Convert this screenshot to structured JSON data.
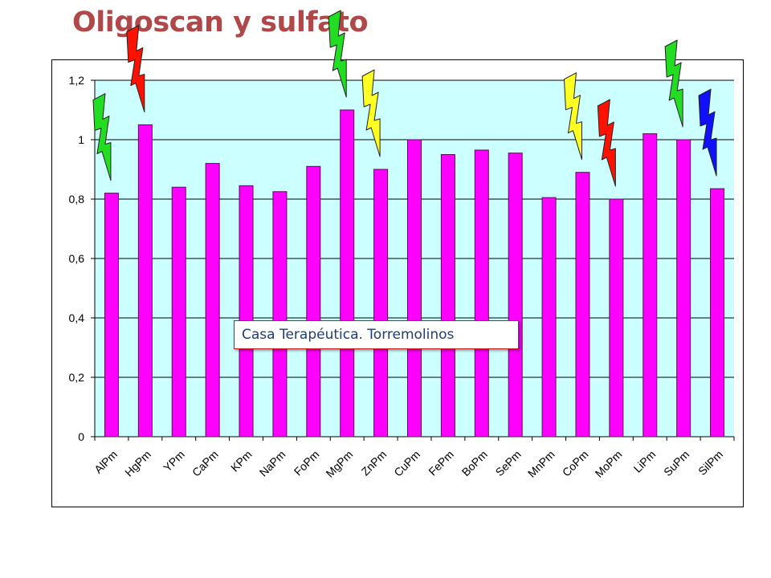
{
  "title": "Oligoscan y sulfato",
  "annotation": "Casa Terapéutica. Torremolinos",
  "colors": {
    "title": "#b0484a",
    "plot_bg": "#ccffff",
    "bar_fill": "#ff00ff",
    "bar_stroke": "#5a0a5a"
  },
  "markers": [
    {
      "category": "AlPm",
      "color": "#22dd22",
      "icon": "lightning-icon"
    },
    {
      "category": "HgPm",
      "color": "#ff1100",
      "icon": "lightning-icon"
    },
    {
      "category": "MgPm",
      "color": "#22dd22",
      "icon": "lightning-icon"
    },
    {
      "category": "ZnPm",
      "color": "#ffff22",
      "icon": "lightning-icon"
    },
    {
      "category": "CoPm",
      "color": "#ffff22",
      "icon": "lightning-icon"
    },
    {
      "category": "MoPm",
      "color": "#ff1100",
      "icon": "lightning-icon"
    },
    {
      "category": "SuPm",
      "color": "#22dd22",
      "icon": "lightning-icon"
    },
    {
      "category": "SilPm",
      "color": "#1010ff",
      "icon": "lightning-icon"
    }
  ],
  "chart_data": {
    "type": "bar",
    "title": "",
    "xlabel": "",
    "ylabel": "",
    "ylim": [
      0,
      1.2
    ],
    "yticks": [
      "0",
      "0,2",
      "0,4",
      "0,6",
      "0,8",
      "1",
      "1,2"
    ],
    "grid": true,
    "legend": "none",
    "categories": [
      "AlPm",
      "HgPm",
      "YPm",
      "CaPm",
      "KPm",
      "NaPm",
      "FoPm",
      "MgPm",
      "ZnPm",
      "CuPm",
      "FePm",
      "BoPm",
      "SePm",
      "MnPm",
      "CoPm",
      "MoPm",
      "LiPm",
      "SuPm",
      "SilPm"
    ],
    "values": [
      0.82,
      1.05,
      0.84,
      0.92,
      0.845,
      0.825,
      0.91,
      1.1,
      0.9,
      1.0,
      0.95,
      0.965,
      0.955,
      0.805,
      0.89,
      0.8,
      1.02,
      1.0,
      0.835
    ]
  }
}
